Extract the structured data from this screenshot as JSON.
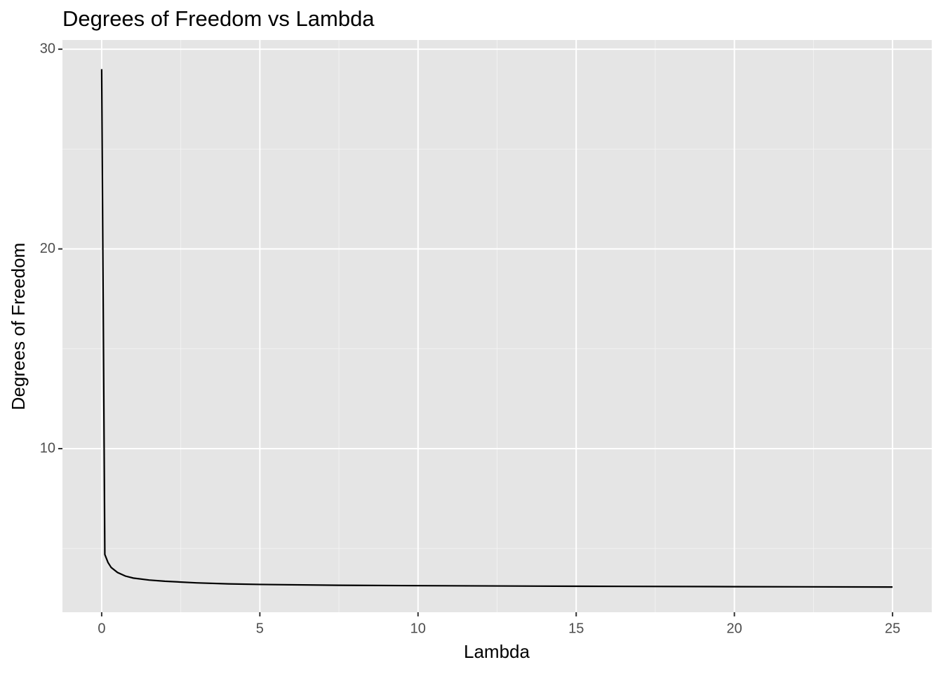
{
  "chart_data": {
    "type": "line",
    "title": "Degrees of Freedom vs Lambda",
    "x_label": "Lambda",
    "y_label": "Degrees of Freedom",
    "x": [
      0,
      0.1,
      0.2,
      0.3,
      0.5,
      0.75,
      1,
      1.5,
      2,
      3,
      4,
      5,
      7.5,
      10,
      15,
      20,
      25
    ],
    "series": [
      {
        "color": "#000000",
        "values": [
          29.0,
          4.7,
          4.3,
          4.05,
          3.8,
          3.62,
          3.52,
          3.42,
          3.36,
          3.28,
          3.23,
          3.2,
          3.16,
          3.14,
          3.11,
          3.09,
          3.07
        ]
      }
    ],
    "xlim": [
      -1.24,
      26.24
    ],
    "ylim": [
      1.81,
      30.46
    ],
    "xticks": [
      0,
      5,
      10,
      15,
      20,
      25
    ],
    "yticks": [
      10,
      20,
      30
    ],
    "x_minor_breaks": [
      2.5,
      7.5,
      12.5,
      17.5,
      22.5
    ],
    "y_minor_breaks": [
      5,
      15,
      25
    ],
    "grid": true
  }
}
